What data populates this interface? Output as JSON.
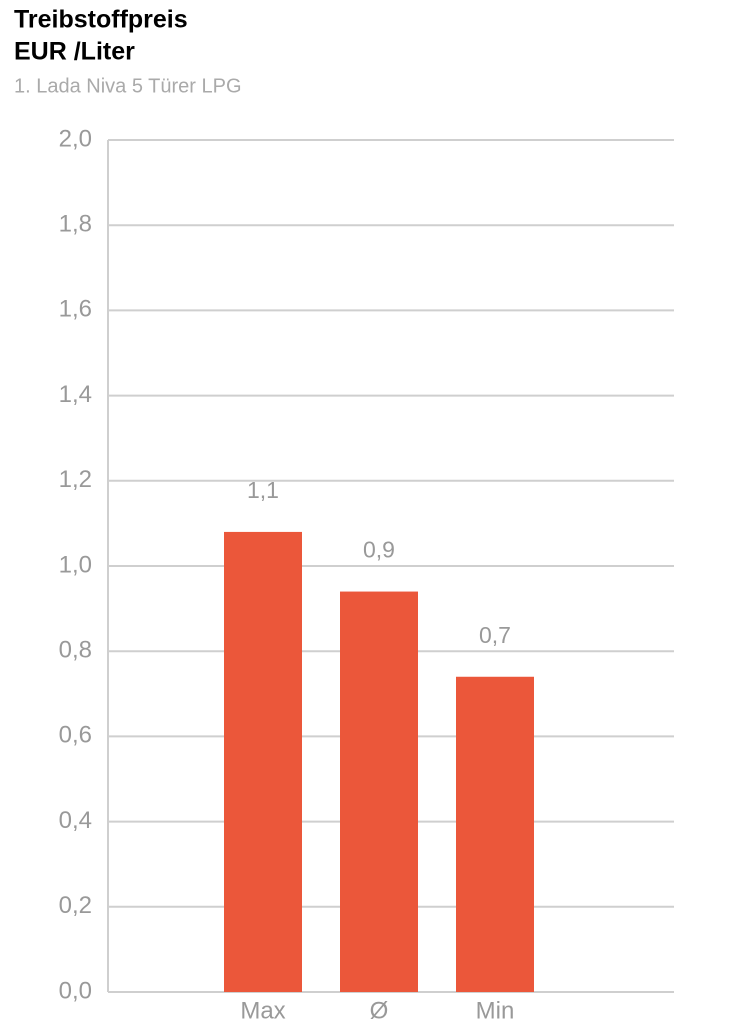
{
  "chart_data": {
    "type": "bar",
    "title": "Treibstoffpreis",
    "unit": "EUR /Liter",
    "subtitle": "1. Lada Niva 5 Türer LPG",
    "categories": [
      "Max",
      "Ø",
      "Min"
    ],
    "values": [
      1.08,
      0.94,
      0.74
    ],
    "value_labels": [
      "1,1",
      "0,9",
      "0,7"
    ],
    "color": "#eb573a",
    "ylim": [
      0,
      2
    ],
    "yticks": [
      {
        "value": 0,
        "label": "0,0"
      },
      {
        "value": 0.2,
        "label": "0,2"
      },
      {
        "value": 0.4,
        "label": "0,4"
      },
      {
        "value": 0.6,
        "label": "0,6"
      },
      {
        "value": 0.8,
        "label": "0,8"
      },
      {
        "value": 1,
        "label": "1,0"
      },
      {
        "value": 1.2,
        "label": "1,2"
      },
      {
        "value": 1.4,
        "label": "1,4"
      },
      {
        "value": 1.6,
        "label": "1,6"
      },
      {
        "value": 1.8,
        "label": "1,8"
      },
      {
        "value": 2,
        "label": "2,0"
      }
    ],
    "grid": true
  }
}
